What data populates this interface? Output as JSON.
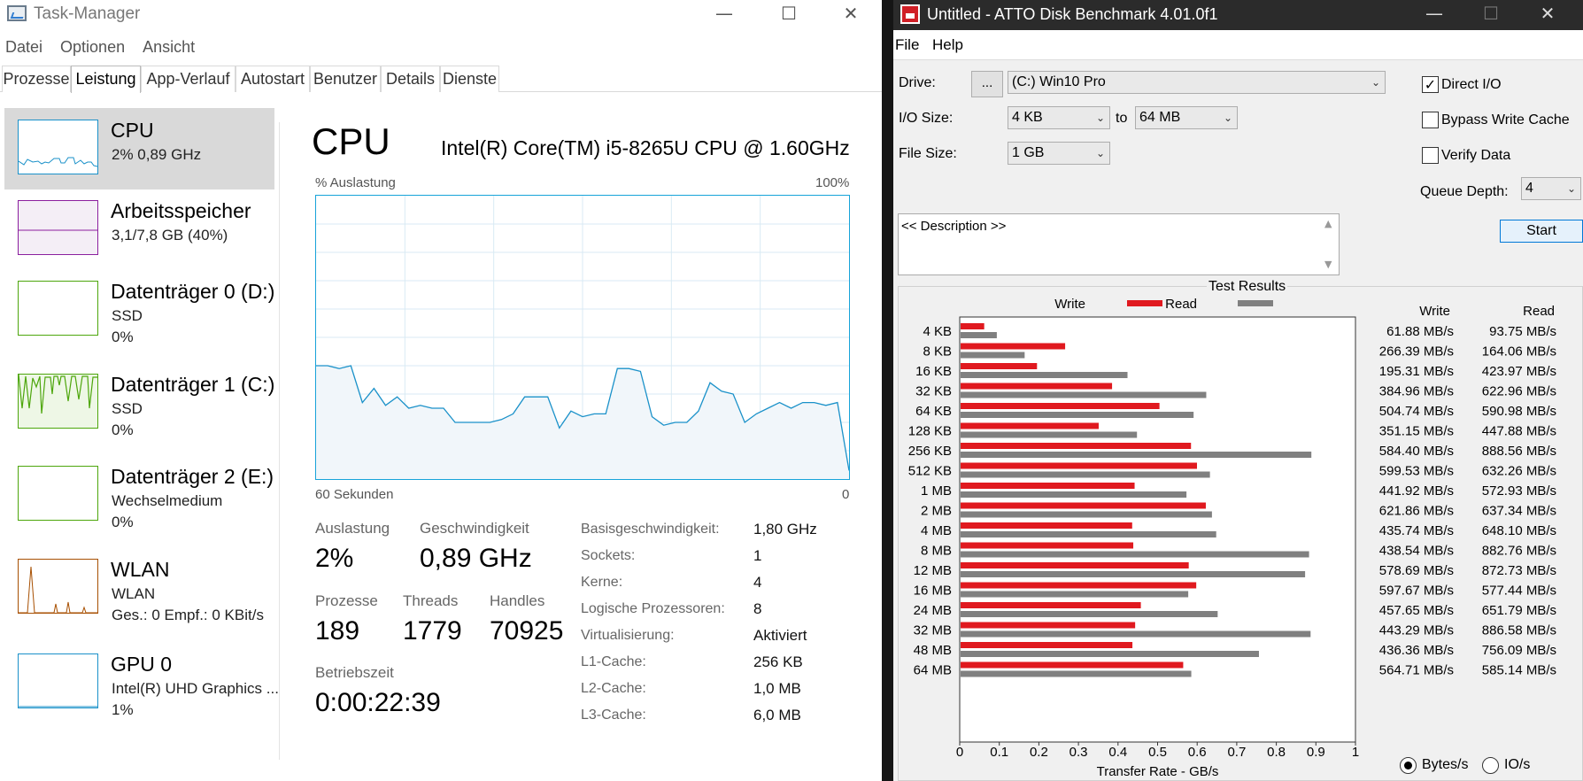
{
  "task_manager": {
    "title": "Task-Manager",
    "window_controls": {
      "minimize": "—",
      "maximize": "☐",
      "close": "✕"
    },
    "menu": [
      "Datei",
      "Optionen",
      "Ansicht"
    ],
    "tabs": [
      "Prozesse",
      "Leistung",
      "App-Verlauf",
      "Autostart",
      "Benutzer",
      "Details",
      "Dienste"
    ],
    "active_tab": "Leistung",
    "sidebar": [
      {
        "name": "CPU",
        "line1": "2%  0,89 GHz",
        "line2": "",
        "color": "#1a91c9",
        "fill": "#ffffff"
      },
      {
        "name": "Arbeitsspeicher",
        "line1": "3,1/7,8 GB (40%)",
        "line2": "",
        "color": "#8b1f9e",
        "fill": "#f4eef6"
      },
      {
        "name": "Datenträger 0 (D:)",
        "line1": "SSD",
        "line2": "0%",
        "color": "#4da60c",
        "fill": "#ffffff"
      },
      {
        "name": "Datenträger 1 (C:)",
        "line1": "SSD",
        "line2": "0%",
        "color": "#4da60c",
        "fill": "#eef7e6"
      },
      {
        "name": "Datenträger 2 (E:)",
        "line1": "Wechselmedium",
        "line2": "0%",
        "color": "#4da60c",
        "fill": "#ffffff"
      },
      {
        "name": "WLAN",
        "line1": "WLAN",
        "line2": "Ges.: 0  Empf.: 0 KBit/s",
        "color": "#a74f01",
        "fill": "#ffffff"
      },
      {
        "name": "GPU 0",
        "line1": "Intel(R) UHD Graphics ...",
        "line2": "1%",
        "color": "#1a91c9",
        "fill": "#ffffff"
      }
    ],
    "main": {
      "title": "CPU",
      "model": "Intel(R) Core(TM) i5-8265U CPU @ 1.60GHz",
      "graph_top_left": "% Auslastung",
      "graph_top_right": "100%",
      "graph_bottom_left": "60 Sekunden",
      "graph_bottom_right": "0",
      "graph_series_percent": [
        40,
        40,
        39,
        40,
        27,
        32,
        26,
        29,
        25,
        26,
        25,
        25,
        20,
        20,
        20,
        20,
        21,
        23,
        29,
        29,
        29,
        18,
        24,
        22,
        23,
        23,
        39,
        39,
        38,
        22,
        19,
        20,
        20,
        24,
        34,
        31,
        30,
        20,
        23,
        25,
        27,
        25,
        27,
        27,
        26,
        27,
        3
      ],
      "stats": {
        "auslastung_label": "Auslastung",
        "auslastung_value": "2%",
        "geschwindigkeit_label": "Geschwindigkeit",
        "geschwindigkeit_value": "0,89 GHz",
        "prozesse_label": "Prozesse",
        "prozesse_value": "189",
        "threads_label": "Threads",
        "threads_value": "1779",
        "handles_label": "Handles",
        "handles_value": "70925",
        "betriebszeit_label": "Betriebszeit",
        "betriebszeit_value": "0:00:22:39"
      },
      "details": [
        {
          "key": "Basisgeschwindigkeit:",
          "value": "1,80 GHz"
        },
        {
          "key": "Sockets:",
          "value": "1"
        },
        {
          "key": "Kerne:",
          "value": "4"
        },
        {
          "key": "Logische Prozessoren:",
          "value": "8"
        },
        {
          "key": "Virtualisierung:",
          "value": "Aktiviert"
        },
        {
          "key": "L1-Cache:",
          "value": "256 KB"
        },
        {
          "key": "L2-Cache:",
          "value": "1,0 MB"
        },
        {
          "key": "L3-Cache:",
          "value": "6,0 MB"
        }
      ]
    }
  },
  "atto": {
    "title": "Untitled - ATTO Disk Benchmark 4.01.0f1",
    "window_controls": {
      "minimize": "—",
      "maximize": "☐",
      "close": "✕"
    },
    "menu": [
      "File",
      "Help"
    ],
    "drive_label": "Drive:",
    "browse_label": "...",
    "drive_value": "(C:) Win10 Pro",
    "io_size_label": "I/O Size:",
    "io_size_from": "4 KB",
    "io_to_label": "to",
    "io_size_to": "64 MB",
    "file_size_label": "File Size:",
    "file_size_value": "1 GB",
    "direct_io_label": "Direct I/O",
    "direct_io_checked": true,
    "bypass_write_cache_label": "Bypass Write Cache",
    "bypass_write_cache_checked": false,
    "verify_data_label": "Verify Data",
    "verify_data_checked": false,
    "queue_depth_label": "Queue Depth:",
    "queue_depth_value": "4",
    "description_text": "<< Description >>",
    "start_label": "Start",
    "results_title": "Test Results",
    "legend_write": "Write",
    "legend_read": "Read",
    "col_write": "Write",
    "col_read": "Read",
    "write_color": "#e0191f",
    "read_color": "#808080",
    "radio_bytes": "Bytes/s",
    "radio_ios": "IO/s",
    "units_selected": "Bytes/s"
  },
  "chart_data": {
    "type": "bar",
    "title": "Test Results",
    "xlabel": "Transfer Rate - GB/s",
    "ylabel": "",
    "xlim": [
      0,
      1
    ],
    "x_ticks": [
      "0",
      "0.1",
      "0.2",
      "0.3",
      "0.4",
      "0.5",
      "0.6",
      "0.7",
      "0.8",
      "0.9",
      "1"
    ],
    "orientation": "horizontal",
    "categories": [
      "4 KB",
      "8 KB",
      "16 KB",
      "32 KB",
      "64 KB",
      "128 KB",
      "256 KB",
      "512 KB",
      "1 MB",
      "2 MB",
      "4 MB",
      "8 MB",
      "12 MB",
      "16 MB",
      "24 MB",
      "32 MB",
      "48 MB",
      "64 MB"
    ],
    "series": [
      {
        "name": "Write",
        "values": [
          0.06188,
          0.26639,
          0.19531,
          0.38496,
          0.50474,
          0.35115,
          0.5844,
          0.59953,
          0.44192,
          0.62186,
          0.43574,
          0.43854,
          0.57869,
          0.59767,
          0.45765,
          0.44329,
          0.43636,
          0.56471
        ]
      },
      {
        "name": "Read",
        "values": [
          0.09375,
          0.16406,
          0.42397,
          0.62296,
          0.59098,
          0.44788,
          0.88856,
          0.63226,
          0.57293,
          0.63734,
          0.6481,
          0.88276,
          0.87273,
          0.57744,
          0.65179,
          0.88658,
          0.75609,
          0.58514
        ]
      }
    ],
    "write_labels": [
      "61.88 MB/s",
      "266.39 MB/s",
      "195.31 MB/s",
      "384.96 MB/s",
      "504.74 MB/s",
      "351.15 MB/s",
      "584.40 MB/s",
      "599.53 MB/s",
      "441.92 MB/s",
      "621.86 MB/s",
      "435.74 MB/s",
      "438.54 MB/s",
      "578.69 MB/s",
      "597.67 MB/s",
      "457.65 MB/s",
      "443.29 MB/s",
      "436.36 MB/s",
      "564.71 MB/s"
    ],
    "read_labels": [
      "93.75 MB/s",
      "164.06 MB/s",
      "423.97 MB/s",
      "622.96 MB/s",
      "590.98 MB/s",
      "447.88 MB/s",
      "888.56 MB/s",
      "632.26 MB/s",
      "572.93 MB/s",
      "637.34 MB/s",
      "648.10 MB/s",
      "882.76 MB/s",
      "872.73 MB/s",
      "577.44 MB/s",
      "651.79 MB/s",
      "886.58 MB/s",
      "756.09 MB/s",
      "585.14 MB/s"
    ],
    "legend": "top"
  }
}
